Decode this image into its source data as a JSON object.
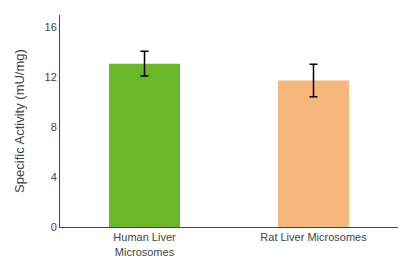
{
  "chart_data": {
    "type": "bar",
    "categories": [
      "Human Liver\nMicrosomes",
      "Rat Liver Microsomes"
    ],
    "values": [
      13.1,
      11.75
    ],
    "errors": [
      1.0,
      1.3
    ],
    "colors": [
      "#6ab829",
      "#f5b87a"
    ],
    "ylabel": "Specific Activity (mU/mg)",
    "ylim": [
      0,
      17
    ],
    "yticks": [
      0,
      4,
      8,
      12,
      16
    ],
    "grid": false
  }
}
